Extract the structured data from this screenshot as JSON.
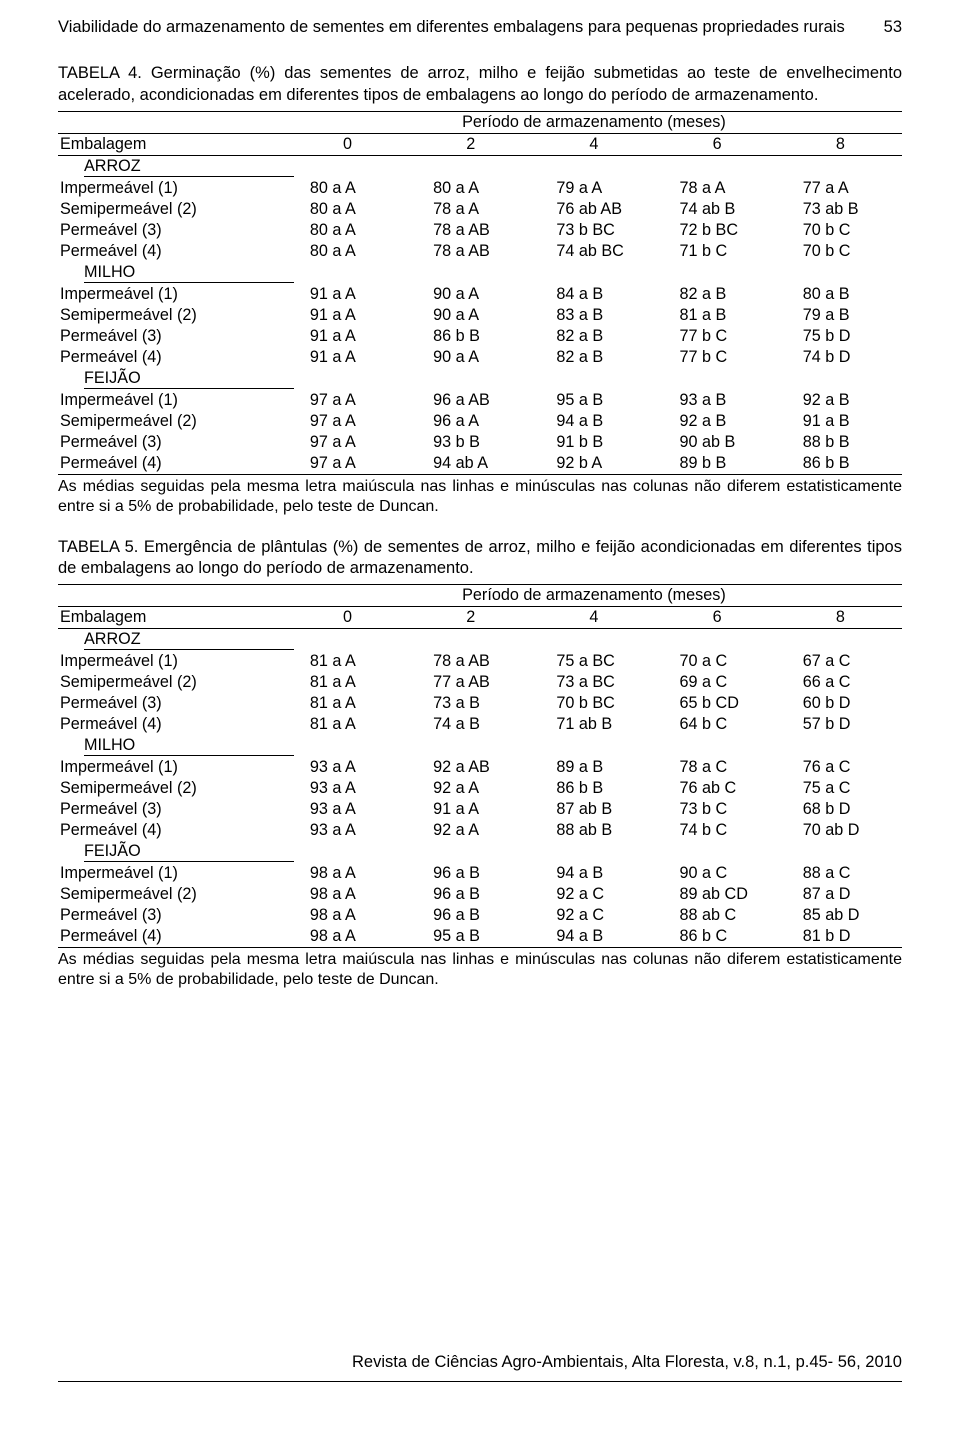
{
  "header": {
    "title": "Viabilidade do armazenamento de sementes em diferentes embalagens para pequenas propriedades rurais",
    "page_number": "53"
  },
  "table4": {
    "caption_label": "TABELA 4.",
    "caption_text": "Germinação (%) das sementes de arroz, milho e feijão submetidas ao teste de envelhecimento acelerado, acondicionadas em diferentes tipos de embalagens ao longo do período de armazenamento.",
    "period_label": "Período de armazenamento (meses)",
    "col_headers": [
      "Embalagem",
      "0",
      "2",
      "4",
      "6",
      "8"
    ],
    "sections": [
      {
        "name": "ARROZ",
        "rows": [
          {
            "label": "Impermeável (1)",
            "c": [
              "80 a A",
              "80 a A",
              "79 a A",
              "78 a A",
              "77 a A"
            ]
          },
          {
            "label": "Semipermeável (2)",
            "c": [
              "80 a A",
              "78 a A",
              "76 ab AB",
              "74 ab B",
              "73 ab B"
            ]
          },
          {
            "label": "Permeável (3)",
            "c": [
              "80 a A",
              "78 a AB",
              "73 b BC",
              "72 b BC",
              "70 b C"
            ]
          },
          {
            "label": "Permeável (4)",
            "c": [
              "80 a A",
              "78 a AB",
              "74 ab BC",
              "71 b C",
              "70 b C"
            ]
          }
        ]
      },
      {
        "name": "MILHO",
        "rows": [
          {
            "label": "Impermeável (1)",
            "c": [
              "91 a A",
              "90 a A",
              "84 a B",
              "82 a B",
              "80 a B"
            ]
          },
          {
            "label": "Semipermeável (2)",
            "c": [
              "91 a A",
              "90 a A",
              "83 a B",
              "81 a B",
              "79 a B"
            ]
          },
          {
            "label": "Permeável (3)",
            "c": [
              "91 a A",
              "86 b B",
              "82 a B",
              "77 b C",
              "75 b D"
            ]
          },
          {
            "label": "Permeável (4)",
            "c": [
              "91 a A",
              "90 a A",
              "82 a B",
              "77 b C",
              "74 b D"
            ]
          }
        ]
      },
      {
        "name": "FEIJÃO",
        "rows": [
          {
            "label": "Impermeável (1)",
            "c": [
              "97 a A",
              "96 a AB",
              "95 a B",
              "93 a B",
              "92 a B"
            ]
          },
          {
            "label": "Semipermeável (2)",
            "c": [
              "97 a A",
              "96 a A",
              "94 a B",
              "92 a B",
              "91 a B"
            ]
          },
          {
            "label": "Permeável (3)",
            "c": [
              "97 a A",
              "93 b B",
              "91 b B",
              "90 ab B",
              "88 b B"
            ]
          },
          {
            "label": "Permeável (4)",
            "c": [
              "97 a A",
              "94 ab A",
              "92 b A",
              "89 b B",
              "86 b B"
            ]
          }
        ]
      }
    ]
  },
  "table5": {
    "caption_label": "TABELA 5.",
    "caption_text": "Emergência de plântulas (%) de sementes de arroz, milho e feijão acondicionadas em diferentes tipos de embalagens ao longo do período de armazenamento.",
    "period_label": "Período de armazenamento (meses)",
    "col_headers": [
      "Embalagem",
      "0",
      "2",
      "4",
      "6",
      "8"
    ],
    "sections": [
      {
        "name": "ARROZ",
        "rows": [
          {
            "label": "Impermeável (1)",
            "c": [
              "81 a A",
              "78 a AB",
              "75 a BC",
              "70 a C",
              "67 a C"
            ]
          },
          {
            "label": "Semipermeável (2)",
            "c": [
              "81 a A",
              "77 a AB",
              "73 a BC",
              "69 a C",
              "66 a C"
            ]
          },
          {
            "label": "Permeável (3)",
            "c": [
              "81 a A",
              "73 a B",
              "70 b BC",
              "65 b CD",
              "60 b D"
            ]
          },
          {
            "label": "Permeável (4)",
            "c": [
              "81 a A",
              "74 a B",
              "71 ab B",
              "64 b C",
              "57 b D"
            ]
          }
        ]
      },
      {
        "name": "MILHO",
        "rows": [
          {
            "label": "Impermeável (1)",
            "c": [
              "93 a A",
              "92 a AB",
              "89 a B",
              "78 a C",
              "76 a C"
            ]
          },
          {
            "label": "Semipermeável (2)",
            "c": [
              "93 a A",
              "92 a A",
              "86 b B",
              "76 ab C",
              "75 a C"
            ]
          },
          {
            "label": "Permeável (3)",
            "c": [
              "93 a A",
              "91 a A",
              "87 ab B",
              "73 b C",
              "68 b D"
            ]
          },
          {
            "label": "Permeável (4)",
            "c": [
              "93 a A",
              "92 a A",
              "88 ab B",
              "74 b C",
              "70 ab D"
            ]
          }
        ]
      },
      {
        "name": "FEIJÃO",
        "rows": [
          {
            "label": "Impermeável (1)",
            "c": [
              "98 a A",
              "96 a B",
              "94 a B",
              "90 a C",
              "88 a C"
            ]
          },
          {
            "label": "Semipermeável (2)",
            "c": [
              "98 a A",
              "96 a B",
              "92 a C",
              "89 ab CD",
              "87 a D"
            ]
          },
          {
            "label": "Permeável (3)",
            "c": [
              "98 a A",
              "96 a B",
              "92 a C",
              "88 ab C",
              "85 ab D"
            ]
          },
          {
            "label": "Permeável (4)",
            "c": [
              "98 a A",
              "95 a B",
              "94 a B",
              "86 b C",
              "81 b D"
            ]
          }
        ]
      }
    ]
  },
  "footnote": "As médias seguidas pela mesma letra maiúscula nas linhas e minúsculas nas colunas não diferem estatisticamente entre si a 5% de probabilidade, pelo teste de Duncan.",
  "footer": "Revista de Ciências Agro-Ambientais, Alta Floresta, v.8, n.1, p.45- 56, 2010"
}
